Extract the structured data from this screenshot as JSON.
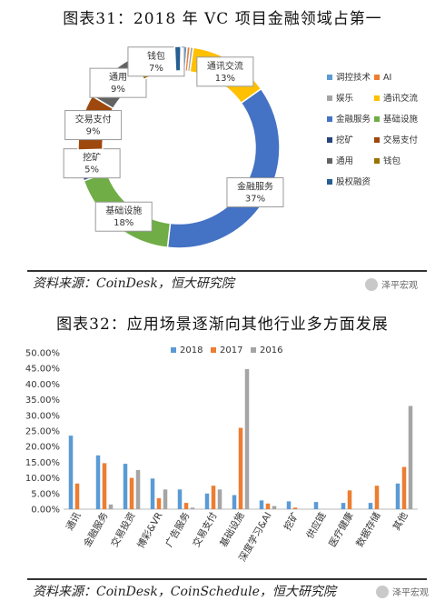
{
  "figure1": {
    "title": "图表31：2018 年 VC 项目金融领域占第一",
    "source": "资料来源：CoinDesk，恒大研究院"
  },
  "figure2": {
    "title": "图表32：应用场景逐渐向其他行业多方面发展",
    "source": "资料来源：CoinDesk，CoinSchedule，恒大研究院"
  },
  "watermark": "泽平宏观",
  "chart_data": [
    {
      "type": "pie",
      "variant": "doughnut",
      "legend_position": "right",
      "slices": [
        {
          "name": "调控技术",
          "value": 1,
          "color": "#5b9bd5",
          "label": ""
        },
        {
          "name": "AI",
          "value": 0.5,
          "color": "#ed7d31",
          "label": ""
        },
        {
          "name": "娱乐",
          "value": 0.5,
          "color": "#a5a5a5",
          "label": ""
        },
        {
          "name": "通讯交流",
          "value": 13,
          "color": "#ffc000",
          "label": "通讯交流\n13%"
        },
        {
          "name": "金融服务",
          "value": 37,
          "color": "#4472c4",
          "label": "金融服务\n37%"
        },
        {
          "name": "基础设施",
          "value": 18,
          "color": "#70ad47",
          "label": "基础设施\n18%"
        },
        {
          "name": "挖矿",
          "value": 5,
          "color": "#264478",
          "label": "挖矿\n5%"
        },
        {
          "name": "交易支付",
          "value": 9,
          "color": "#9e480e",
          "label": "交易支付\n9%"
        },
        {
          "name": "通用",
          "value": 9,
          "color": "#636363",
          "label": "通用\n9%"
        },
        {
          "name": "钱包",
          "value": 7,
          "color": "#997300",
          "label": "钱包\n7%"
        },
        {
          "name": "股权融资",
          "value": 1,
          "color": "#255e91",
          "label": ""
        }
      ]
    },
    {
      "type": "bar",
      "legend_position": "top",
      "categories": [
        "通讯",
        "金融服务",
        "交易投资",
        "博彩&VR",
        "广告服务",
        "交易支付",
        "基础设施",
        "深度学习&AI",
        "挖矿",
        "供应链",
        "医疗健康",
        "数据存储",
        "其他"
      ],
      "series": [
        {
          "name": "2018",
          "color": "#5b9bd5",
          "values": [
            23.5,
            17.2,
            14.5,
            9.8,
            6.3,
            5.0,
            4.5,
            2.8,
            2.5,
            2.3,
            2.0,
            2.0,
            8.2
          ]
        },
        {
          "name": "2017",
          "color": "#ed7d31",
          "values": [
            8.2,
            14.7,
            10.0,
            3.5,
            2.0,
            7.5,
            26.0,
            1.8,
            0.5,
            0.0,
            6.0,
            7.5,
            13.5
          ]
        },
        {
          "name": "2016",
          "color": "#a5a5a5",
          "values": [
            0.0,
            1.5,
            12.5,
            6.3,
            0.5,
            6.3,
            44.8,
            1.0,
            0.0,
            0.0,
            0.0,
            0.0,
            33.0
          ]
        }
      ],
      "ylim": [
        0,
        50
      ],
      "yticks": [
        "0.00%",
        "5.00%",
        "10.00%",
        "15.00%",
        "20.00%",
        "25.00%",
        "30.00%",
        "35.00%",
        "40.00%",
        "45.00%",
        "50.00%"
      ],
      "grid": false
    }
  ]
}
